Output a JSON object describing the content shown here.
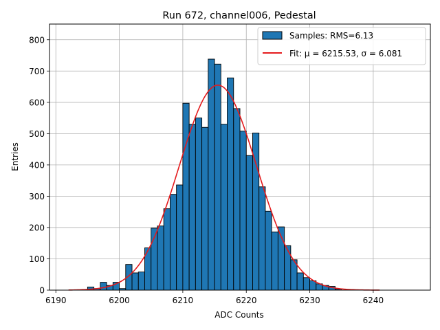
{
  "chart_data": {
    "type": "bar",
    "title": "Run 672, channel006, Pedestal",
    "xlabel": "ADC Counts",
    "ylabel": "Entries",
    "xlim": [
      6189,
      6249
    ],
    "ylim": [
      0,
      850
    ],
    "xticks": [
      6190,
      6200,
      6210,
      6220,
      6230,
      6240
    ],
    "yticks": [
      0,
      100,
      200,
      300,
      400,
      500,
      600,
      700,
      800
    ],
    "grid": true,
    "legend_position": "top-right",
    "bin_width": 1,
    "bins": [
      {
        "x": 6195,
        "count": 10
      },
      {
        "x": 6196,
        "count": 5
      },
      {
        "x": 6197,
        "count": 25
      },
      {
        "x": 6198,
        "count": 15
      },
      {
        "x": 6199,
        "count": 25
      },
      {
        "x": 6200,
        "count": 5
      },
      {
        "x": 6201,
        "count": 82
      },
      {
        "x": 6202,
        "count": 55
      },
      {
        "x": 6203,
        "count": 58
      },
      {
        "x": 6204,
        "count": 135
      },
      {
        "x": 6205,
        "count": 198
      },
      {
        "x": 6206,
        "count": 205
      },
      {
        "x": 6207,
        "count": 260
      },
      {
        "x": 6208,
        "count": 306
      },
      {
        "x": 6209,
        "count": 336
      },
      {
        "x": 6210,
        "count": 597
      },
      {
        "x": 6211,
        "count": 530
      },
      {
        "x": 6212,
        "count": 550
      },
      {
        "x": 6213,
        "count": 520
      },
      {
        "x": 6214,
        "count": 738
      },
      {
        "x": 6215,
        "count": 722
      },
      {
        "x": 6216,
        "count": 530
      },
      {
        "x": 6217,
        "count": 678
      },
      {
        "x": 6218,
        "count": 580
      },
      {
        "x": 6219,
        "count": 508
      },
      {
        "x": 6220,
        "count": 430
      },
      {
        "x": 6221,
        "count": 502
      },
      {
        "x": 6222,
        "count": 330
      },
      {
        "x": 6223,
        "count": 252
      },
      {
        "x": 6224,
        "count": 186
      },
      {
        "x": 6225,
        "count": 202
      },
      {
        "x": 6226,
        "count": 142
      },
      {
        "x": 6227,
        "count": 97
      },
      {
        "x": 6228,
        "count": 55
      },
      {
        "x": 6229,
        "count": 40
      },
      {
        "x": 6230,
        "count": 30
      },
      {
        "x": 6231,
        "count": 20
      },
      {
        "x": 6232,
        "count": 15
      },
      {
        "x": 6233,
        "count": 12
      },
      {
        "x": 6234,
        "count": 3
      }
    ],
    "fit": {
      "mu": 6215.53,
      "sigma": 6.081,
      "amplitude": 655,
      "x_range": [
        6192,
        6241
      ]
    },
    "series": [
      {
        "name": "Samples: RMS=6.13",
        "kind": "histogram",
        "color": "#1f77b4"
      },
      {
        "name": "Fit: μ = 6215.53, σ = 6.081",
        "kind": "line",
        "color": "#e41a1c"
      }
    ]
  }
}
